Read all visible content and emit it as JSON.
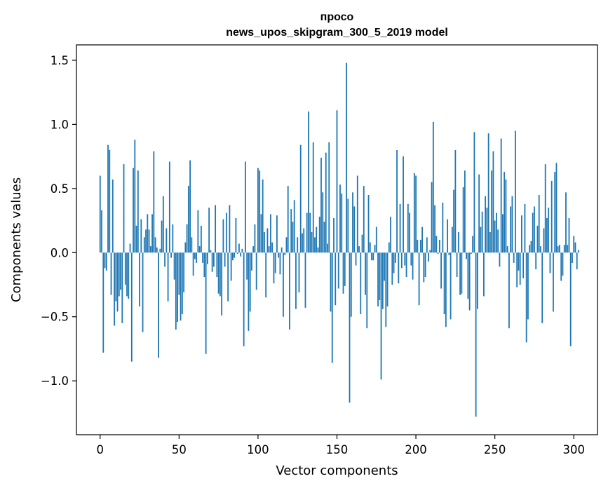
{
  "chart_data": {
    "type": "bar",
    "title_lines": [
      "просо",
      "news_upos_skipgram_300_5_2019 model"
    ],
    "xlabel": "Vector components",
    "ylabel": "Components values",
    "xlim": [
      -15,
      315
    ],
    "ylim": [
      -1.42,
      1.62
    ],
    "xticks": [
      0,
      50,
      100,
      150,
      200,
      250,
      300
    ],
    "xtick_labels": [
      "0",
      "50",
      "100",
      "150",
      "200",
      "250",
      "300"
    ],
    "yticks": [
      -1.0,
      -0.5,
      0.0,
      0.5,
      1.0,
      1.5
    ],
    "ytick_labels": [
      "−1.0",
      "−0.5",
      "0.0",
      "0.5",
      "1.0",
      "1.5"
    ],
    "bar_color": "#1f77b4",
    "grid": false,
    "values": [
      0.6,
      0.33,
      -0.78,
      -0.12,
      -0.14,
      0.84,
      0.8,
      -0.33,
      0.57,
      -0.57,
      -0.38,
      -0.46,
      -0.34,
      -0.29,
      -0.55,
      0.69,
      -0.25,
      -0.34,
      -0.36,
      0.07,
      -0.85,
      0.66,
      0.88,
      0.21,
      0.64,
      -0.42,
      0.26,
      -0.62,
      0.12,
      0.18,
      0.3,
      0.18,
      0.05,
      0.3,
      0.79,
      0.12,
      0.04,
      -0.82,
      0.03,
      0.25,
      0.44,
      -0.11,
      0.19,
      -0.38,
      0.71,
      -0.04,
      0.22,
      -0.21,
      -0.6,
      -0.54,
      -0.33,
      -0.53,
      -0.48,
      -0.31,
      0.08,
      0.22,
      0.52,
      0.72,
      0.12,
      -0.18,
      -0.05,
      -0.08,
      0.33,
      0.05,
      0.21,
      -0.08,
      -0.19,
      -0.79,
      -0.09,
      0.35,
      0.02,
      -0.15,
      -0.11,
      0.37,
      -0.19,
      -0.32,
      -0.34,
      -0.49,
      0.26,
      -0.11,
      0.31,
      -0.38,
      0.37,
      -0.22,
      -0.06,
      -0.04,
      0.27,
      -0.01,
      0.07,
      -0.03,
      0.03,
      -0.73,
      0.71,
      -0.21,
      -0.61,
      -0.46,
      -0.14,
      0.05,
      0.22,
      -0.29,
      0.66,
      0.64,
      0.3,
      0.57,
      0.16,
      -0.35,
      0.19,
      0.05,
      0.3,
      0.08,
      -0.24,
      -0.16,
      0.29,
      -0.04,
      -0.17,
      0.04,
      -0.5,
      -0.02,
      0.12,
      0.52,
      -0.6,
      0.34,
      0.24,
      0.41,
      -0.44,
      0.12,
      -0.31,
      0.84,
      0.15,
      0.19,
      -0.43,
      0.31,
      1.1,
      0.31,
      0.16,
      0.86,
      0.12,
      0.2,
      0.04,
      0.28,
      0.74,
      0.47,
      0.24,
      0.78,
      0.07,
      0.86,
      -0.46,
      -0.86,
      0.27,
      -0.41,
      1.11,
      -0.28,
      0.53,
      0.46,
      -0.32,
      -0.26,
      1.48,
      0.42,
      -1.17,
      -0.5,
      0.47,
      0.36,
      -0.1,
      0.6,
      0.05,
      -0.48,
      0.14,
      0.52,
      -0.33,
      -0.59,
      0.45,
      0.08,
      -0.06,
      -0.06,
      0.06,
      0.2,
      -0.42,
      -0.37,
      -0.99,
      -0.44,
      -0.22,
      -0.58,
      -0.42,
      0.08,
      0.28,
      -0.25,
      -0.16,
      -0.08,
      0.8,
      -0.24,
      0.38,
      -0.12,
      0.75,
      -0.1,
      -0.19,
      0.38,
      0.31,
      -0.1,
      -0.21,
      0.62,
      0.6,
      0.1,
      -0.41,
      0.1,
      0.2,
      -0.23,
      -0.19,
      0.12,
      -0.07,
      0.02,
      0.55,
      1.02,
      0.37,
      0.13,
      -0.01,
      0.1,
      -0.28,
      0.39,
      -0.48,
      -0.58,
      0.26,
      -0.02,
      -0.52,
      0.2,
      0.49,
      0.8,
      -0.19,
      0.16,
      -0.33,
      -0.32,
      0.51,
      0.64,
      -0.05,
      -0.36,
      -0.45,
      -0.01,
      0.13,
      0.94,
      -1.28,
      -0.44,
      0.61,
      0.2,
      0.32,
      -0.34,
      0.44,
      0.35,
      0.93,
      0.16,
      0.64,
      0.79,
      0.25,
      0.31,
      0.18,
      -0.11,
      0.89,
      0.3,
      0.63,
      0.57,
      0.05,
      -0.59,
      0.36,
      0.44,
      -0.08,
      0.95,
      -0.27,
      -0.14,
      -0.25,
      0.29,
      -0.2,
      0.38,
      -0.7,
      -0.52,
      0.06,
      0.09,
      0.31,
      0.36,
      -0.13,
      0.21,
      0.45,
      0.05,
      -0.55,
      0.19,
      0.69,
      0.27,
      0.35,
      -0.16,
      0.56,
      -0.46,
      0.63,
      0.7,
      0.05,
      0.06,
      -0.22,
      -0.18,
      0.06,
      0.47,
      0.06,
      0.27,
      -0.73,
      -0.08,
      0.13,
      0.08,
      -0.13,
      0.02
    ]
  }
}
